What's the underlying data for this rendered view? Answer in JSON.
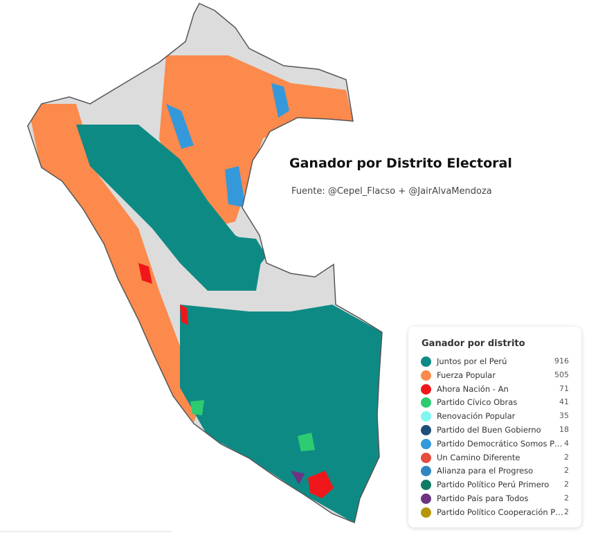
{
  "header": {
    "title": "Ganador por Distrito Electoral",
    "source": "Fuente: @Cepel_Flacso + @JairAlvaMendoza"
  },
  "legend": {
    "title": "Ganador por distrito",
    "items": [
      {
        "name": "Juntos por el Perú",
        "color": "#0e8a84",
        "count": 916
      },
      {
        "name": "Fuerza Popular",
        "color": "#fb8a4c",
        "count": 505
      },
      {
        "name": "Ahora Nación - An",
        "color": "#f0171b",
        "count": 71
      },
      {
        "name": "Partido Cívico Obras",
        "color": "#2ecc71",
        "count": 41
      },
      {
        "name": "Renovación Popular",
        "color": "#7ff7f0",
        "count": 35
      },
      {
        "name": "Partido del Buen Gobierno",
        "color": "#1f4e79",
        "count": 18
      },
      {
        "name": "Partido Democrático Somos P…",
        "color": "#3498db",
        "count": 4
      },
      {
        "name": "Un Camino Diferente",
        "color": "#e74c3c",
        "count": 2
      },
      {
        "name": "Alianza para el Progreso",
        "color": "#2e86c1",
        "count": 2
      },
      {
        "name": "Partido Político Perú Primero",
        "color": "#117a65",
        "count": 2
      },
      {
        "name": "Partido País para Todos",
        "color": "#6c3483",
        "count": 2
      },
      {
        "name": "Partido Político Cooperación P…",
        "color": "#b7950b",
        "count": 2
      }
    ]
  }
}
